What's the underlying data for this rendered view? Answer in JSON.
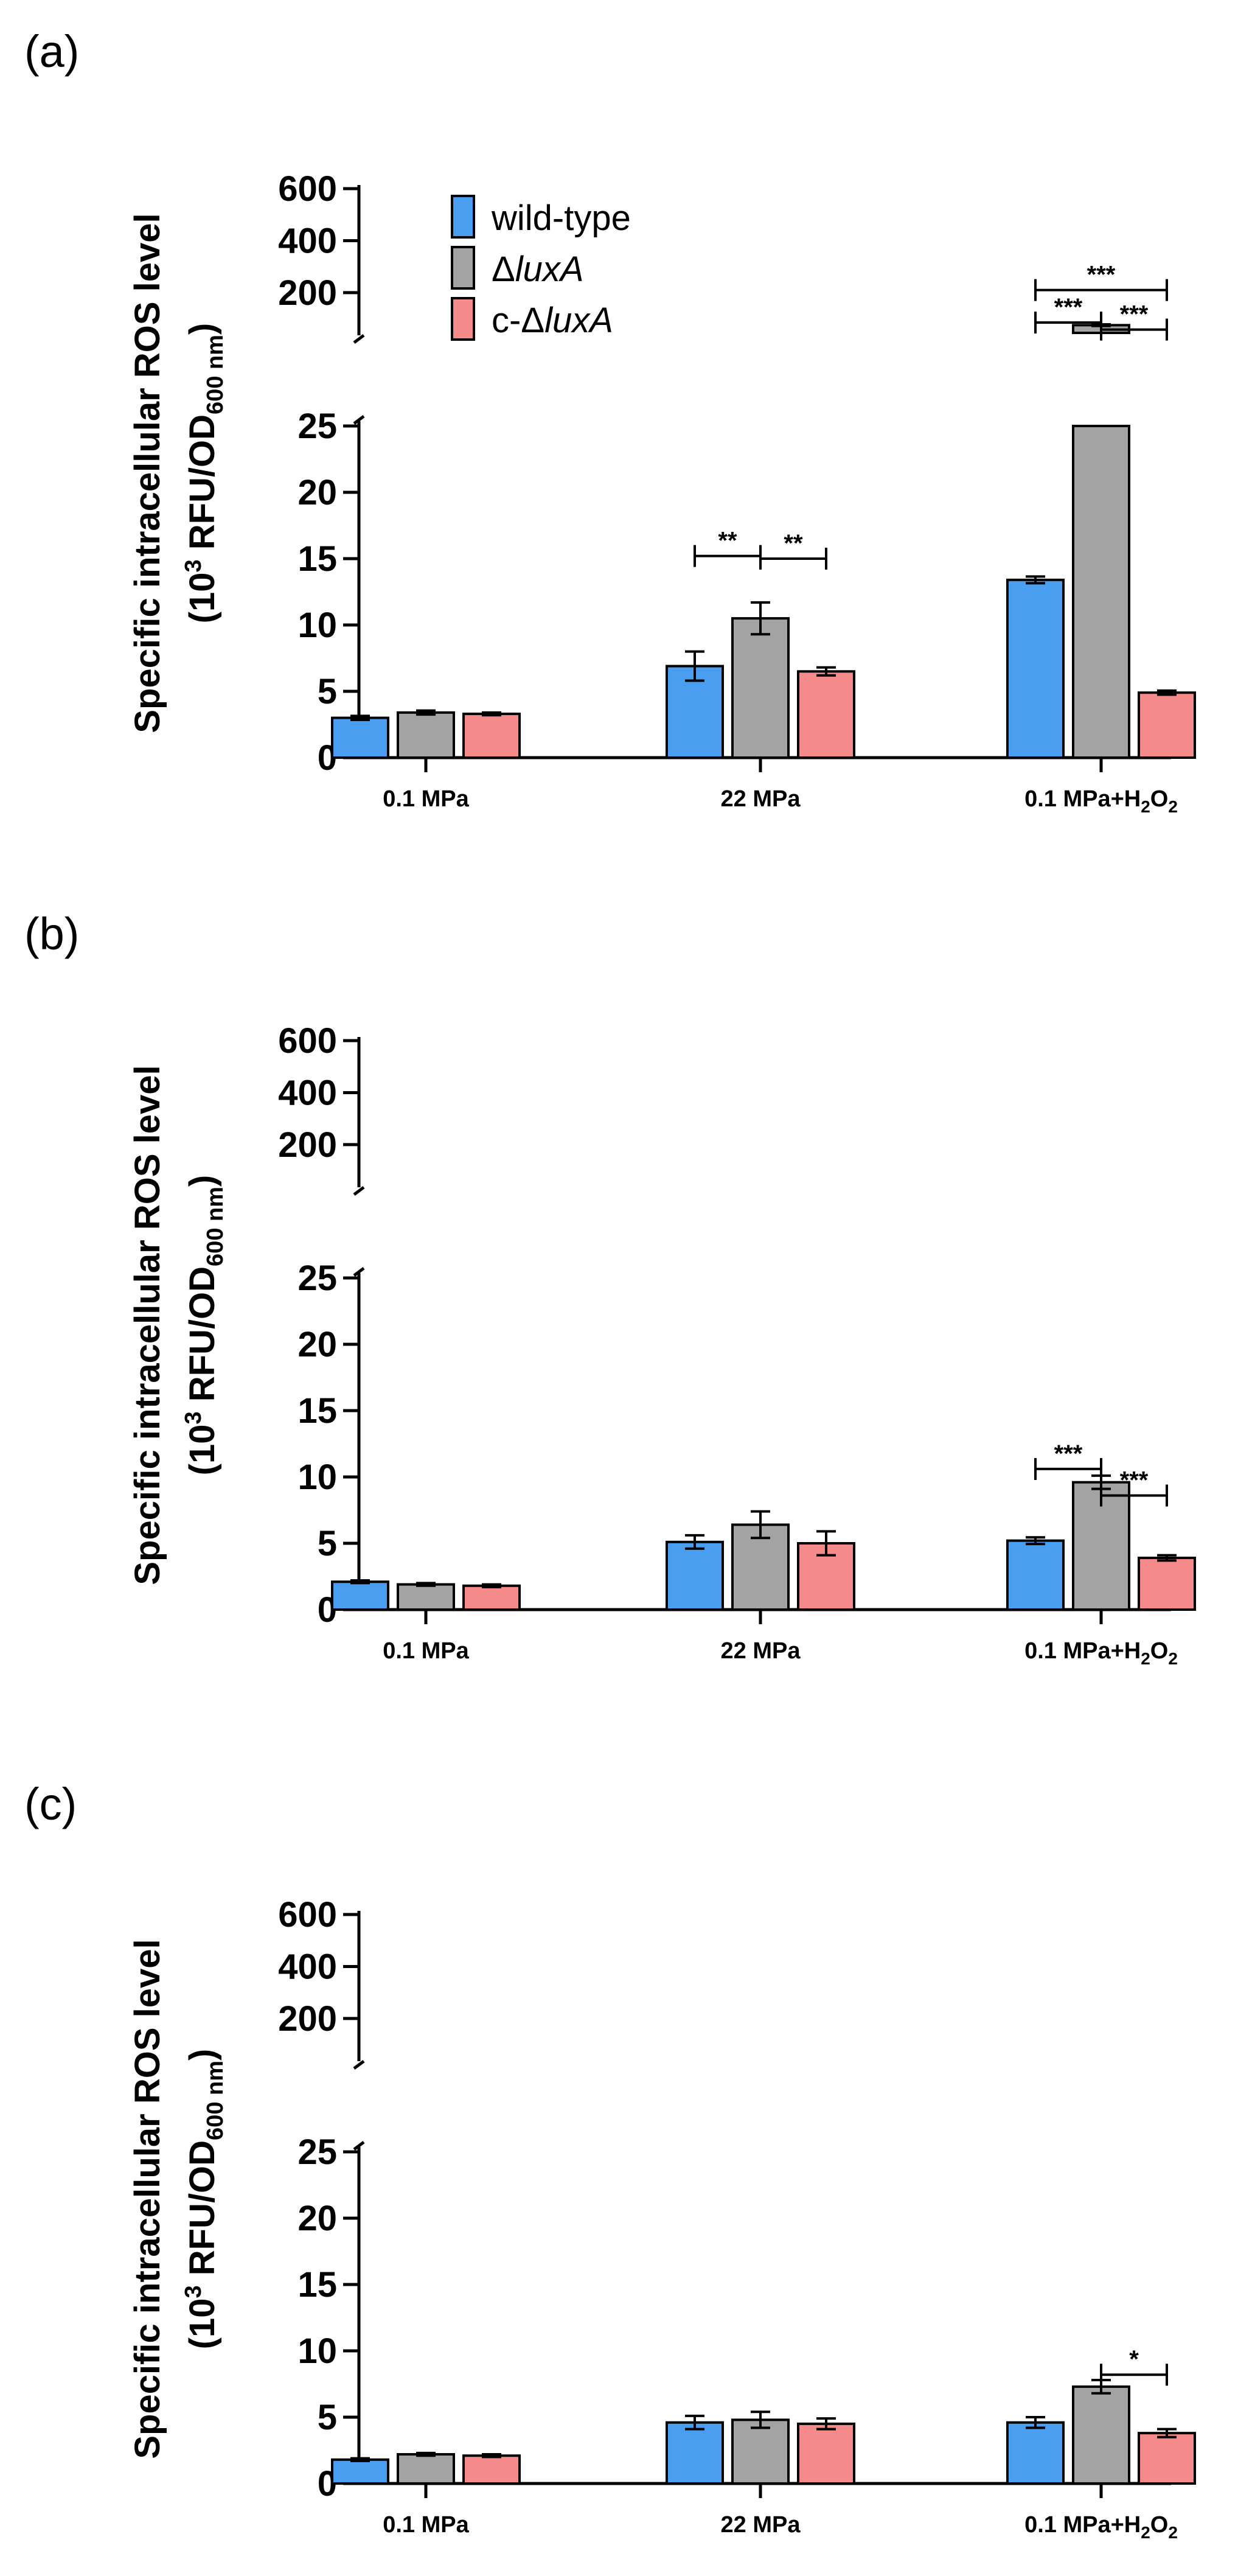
{
  "figure": {
    "ylabel_line1": "Specific intracellular ROS level",
    "ylabel_line2_prefix": "(10",
    "ylabel_line2_sup": "3",
    "ylabel_line2_mid": " RFU/OD",
    "ylabel_line2_sub": "600 nm",
    "ylabel_line2_suffix": ")"
  },
  "legend": [
    {
      "name": "wild-type",
      "prefix": "",
      "italic": "",
      "color": "#4a9ef0"
    },
    {
      "name": "ΔluxA",
      "prefix": "Δ",
      "italic": "luxA",
      "color": "#a3a3a3"
    },
    {
      "name": "c-ΔluxA",
      "prefix": "c-Δ",
      "italic": "luxA",
      "color": "#f58a8a"
    }
  ],
  "colors": {
    "wild_type": "#4a9ef0",
    "luxA": "#a3a3a3",
    "c_luxA": "#f58a8a",
    "axis": "#000000"
  },
  "chart_data": [
    {
      "type": "bar",
      "panel": "(a)",
      "categories": [
        "0.1 MPa",
        "22 MPa",
        "0.1 MPa+H2O2"
      ],
      "category_labels": [
        {
          "text": "0.1 MPa",
          "sub": "",
          "after": ""
        },
        {
          "text": "22 MPa",
          "sub": "",
          "after": ""
        },
        {
          "text": "0.1 MPa+H",
          "sub": "2",
          "after": "O",
          "sub2": "2"
        }
      ],
      "ylabel": "Specific intracellular ROS level (10^3 RFU/OD600 nm)",
      "y_ticks_lower": [
        "0",
        "5",
        "10",
        "15",
        "20",
        "25"
      ],
      "y_ticks_upper": [
        "200",
        "400",
        "600"
      ],
      "ylim_lower": [
        0,
        25
      ],
      "ylim_upper": [
        50,
        600
      ],
      "series": [
        {
          "name": "wild-type",
          "values": [
            3.0,
            6.9,
            13.4
          ],
          "errors": [
            0.15,
            1.1,
            0.25
          ]
        },
        {
          "name": "ΔluxA",
          "values": [
            3.4,
            10.5,
            75
          ],
          "errors": [
            0.15,
            1.2,
            3
          ]
        },
        {
          "name": "c-ΔluxA",
          "values": [
            3.3,
            6.5,
            4.9
          ],
          "errors": [
            0.1,
            0.3,
            0.15
          ]
        }
      ],
      "significance": [
        {
          "category": 1,
          "from": 0,
          "to": 1,
          "label": "**",
          "level": "low",
          "y": 15.2
        },
        {
          "category": 1,
          "from": 1,
          "to": 2,
          "label": "**",
          "level": "low",
          "y": 15.0
        },
        {
          "category": 2,
          "from": 0,
          "to": 1,
          "label": "***",
          "level": "upper",
          "y": 85
        },
        {
          "category": 2,
          "from": 1,
          "to": 2,
          "label": "***",
          "level": "upper",
          "y": 58
        },
        {
          "category": 2,
          "from": 0,
          "to": 2,
          "label": "***",
          "level": "upper",
          "y": 210
        }
      ]
    },
    {
      "type": "bar",
      "panel": "(b)",
      "categories": [
        "0.1 MPa",
        "22 MPa",
        "0.1 MPa+H2O2"
      ],
      "category_labels": [
        {
          "text": "0.1 MPa",
          "sub": "",
          "after": ""
        },
        {
          "text": "22 MPa",
          "sub": "",
          "after": ""
        },
        {
          "text": "0.1 MPa+H",
          "sub": "2",
          "after": "O",
          "sub2": "2"
        }
      ],
      "ylabel": "Specific intracellular ROS level (10^3 RFU/OD600 nm)",
      "y_ticks_lower": [
        "0",
        "5",
        "10",
        "15",
        "20",
        "25"
      ],
      "y_ticks_upper": [
        "200",
        "400",
        "600"
      ],
      "ylim_lower": [
        0,
        25
      ],
      "ylim_upper": [
        50,
        600
      ],
      "series": [
        {
          "name": "wild-type",
          "values": [
            2.1,
            5.1,
            5.2
          ],
          "errors": [
            0.1,
            0.5,
            0.25
          ]
        },
        {
          "name": "ΔluxA",
          "values": [
            1.9,
            6.4,
            9.6
          ],
          "errors": [
            0.1,
            1.0,
            0.5
          ]
        },
        {
          "name": "c-ΔluxA",
          "values": [
            1.8,
            5.0,
            3.9
          ],
          "errors": [
            0.1,
            0.9,
            0.2
          ]
        }
      ],
      "significance": [
        {
          "category": 2,
          "from": 0,
          "to": 1,
          "label": "***",
          "level": "low",
          "y": 10.6
        },
        {
          "category": 2,
          "from": 1,
          "to": 2,
          "label": "***",
          "level": "low",
          "y": 8.6
        }
      ]
    },
    {
      "type": "bar",
      "panel": "(c)",
      "categories": [
        "0.1 MPa",
        "22 MPa",
        "0.1 MPa+H2O2"
      ],
      "category_labels": [
        {
          "text": "0.1 MPa",
          "sub": "",
          "after": ""
        },
        {
          "text": "22 MPa",
          "sub": "",
          "after": ""
        },
        {
          "text": "0.1 MPa+H",
          "sub": "2",
          "after": "O",
          "sub2": "2"
        }
      ],
      "ylabel": "Specific intracellular ROS level (10^3 RFU/OD600 nm)",
      "y_ticks_lower": [
        "0",
        "5",
        "10",
        "15",
        "20",
        "25"
      ],
      "y_ticks_upper": [
        "200",
        "400",
        "600"
      ],
      "ylim_lower": [
        0,
        25
      ],
      "ylim_upper": [
        50,
        600
      ],
      "series": [
        {
          "name": "wild-type",
          "values": [
            1.8,
            4.6,
            4.6
          ],
          "errors": [
            0.1,
            0.5,
            0.4
          ]
        },
        {
          "name": "ΔluxA",
          "values": [
            2.2,
            4.8,
            7.3
          ],
          "errors": [
            0.1,
            0.6,
            0.5
          ]
        },
        {
          "name": "c-ΔluxA",
          "values": [
            2.1,
            4.5,
            3.8
          ],
          "errors": [
            0.1,
            0.4,
            0.3
          ]
        }
      ],
      "significance": [
        {
          "category": 2,
          "from": 1,
          "to": 2,
          "label": "*",
          "level": "low",
          "y": 8.2
        }
      ]
    }
  ]
}
